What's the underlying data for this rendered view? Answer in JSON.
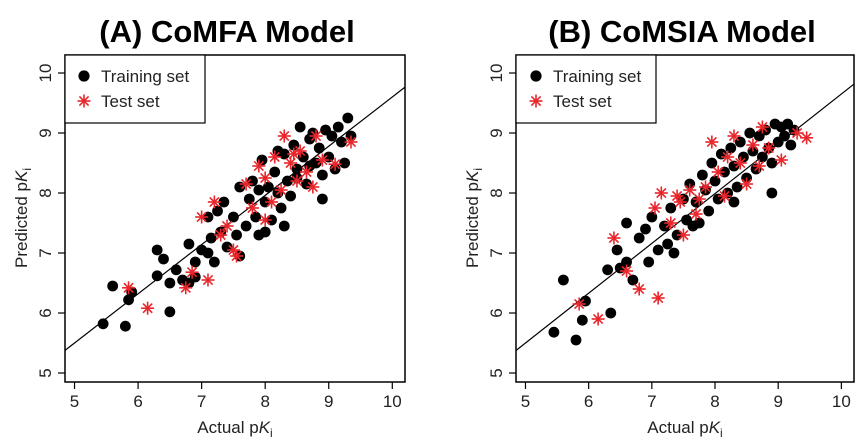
{
  "figure": {
    "panels": [
      {
        "title": "(A) CoMFA Model"
      },
      {
        "title": "(B) CoMSIA Model"
      }
    ]
  },
  "chart_data": [
    {
      "type": "scatter",
      "title": "(A) CoMFA Model",
      "xlabel": "Actual pKi",
      "ylabel": "Predicted pKi",
      "xlim": [
        4.85,
        10.2
      ],
      "ylim": [
        4.85,
        10.3
      ],
      "xticks": [
        5,
        6,
        7,
        8,
        9,
        10
      ],
      "yticks": [
        5,
        6,
        7,
        8,
        9,
        10
      ],
      "legend": {
        "position": "top-left",
        "entries": [
          "Training set",
          "Test set"
        ]
      },
      "reference_line": {
        "slope": 0.82,
        "intercept": 1.4
      },
      "colors": {
        "training": "#000000",
        "test": "#e8262b",
        "line": "#000000"
      },
      "series": [
        {
          "name": "Training set",
          "marker": "filled-circle",
          "points": [
            [
              5.45,
              5.82
            ],
            [
              5.6,
              6.45
            ],
            [
              5.8,
              5.78
            ],
            [
              5.85,
              6.22
            ],
            [
              5.9,
              6.35
            ],
            [
              6.3,
              6.62
            ],
            [
              6.3,
              7.05
            ],
            [
              6.5,
              6.02
            ],
            [
              6.5,
              6.5
            ],
            [
              6.6,
              6.72
            ],
            [
              6.4,
              6.9
            ],
            [
              6.7,
              6.55
            ],
            [
              6.8,
              7.15
            ],
            [
              6.9,
              6.85
            ],
            [
              6.9,
              6.6
            ],
            [
              7.0,
              7.05
            ],
            [
              7.1,
              7.6
            ],
            [
              7.15,
              7.25
            ],
            [
              7.2,
              6.85
            ],
            [
              7.25,
              7.7
            ],
            [
              7.3,
              7.35
            ],
            [
              7.35,
              7.85
            ],
            [
              7.4,
              7.1
            ],
            [
              7.5,
              7.6
            ],
            [
              7.55,
              7.3
            ],
            [
              7.6,
              8.1
            ],
            [
              7.7,
              7.45
            ],
            [
              7.75,
              7.9
            ],
            [
              7.8,
              8.2
            ],
            [
              7.85,
              7.6
            ],
            [
              7.9,
              7.3
            ],
            [
              7.95,
              8.55
            ],
            [
              8.0,
              7.85
            ],
            [
              8.05,
              8.1
            ],
            [
              8.1,
              7.55
            ],
            [
              8.15,
              8.35
            ],
            [
              8.2,
              8.0
            ],
            [
              8.25,
              7.75
            ],
            [
              8.3,
              8.65
            ],
            [
              8.35,
              8.2
            ],
            [
              8.4,
              7.95
            ],
            [
              8.45,
              8.8
            ],
            [
              8.5,
              8.4
            ],
            [
              8.55,
              9.1
            ],
            [
              8.6,
              8.6
            ],
            [
              8.65,
              8.15
            ],
            [
              8.7,
              8.9
            ],
            [
              8.75,
              9.0
            ],
            [
              8.8,
              8.5
            ],
            [
              8.85,
              8.75
            ],
            [
              8.9,
              8.3
            ],
            [
              8.95,
              9.05
            ],
            [
              9.0,
              8.6
            ],
            [
              9.05,
              8.95
            ],
            [
              9.1,
              8.4
            ],
            [
              9.15,
              9.1
            ],
            [
              9.2,
              8.85
            ],
            [
              9.25,
              8.5
            ],
            [
              9.3,
              9.25
            ],
            [
              9.35,
              8.95
            ],
            [
              8.3,
              7.45
            ],
            [
              8.0,
              7.35
            ],
            [
              8.9,
              7.9
            ],
            [
              7.6,
              6.95
            ],
            [
              6.8,
              6.5
            ],
            [
              7.1,
              7.0
            ],
            [
              8.5,
              8.25
            ],
            [
              8.7,
              8.45
            ],
            [
              8.2,
              8.7
            ],
            [
              7.9,
              8.05
            ]
          ]
        },
        {
          "name": "Test set",
          "marker": "asterisk",
          "points": [
            [
              5.85,
              6.42
            ],
            [
              6.15,
              6.08
            ],
            [
              6.75,
              6.42
            ],
            [
              6.85,
              6.68
            ],
            [
              7.1,
              6.55
            ],
            [
              7.0,
              7.6
            ],
            [
              7.2,
              7.85
            ],
            [
              7.4,
              7.45
            ],
            [
              7.5,
              7.05
            ],
            [
              7.55,
              6.95
            ],
            [
              7.7,
              8.15
            ],
            [
              7.8,
              7.75
            ],
            [
              7.9,
              8.45
            ],
            [
              8.0,
              8.25
            ],
            [
              8.1,
              7.85
            ],
            [
              8.15,
              8.6
            ],
            [
              8.25,
              8.05
            ],
            [
              8.3,
              8.95
            ],
            [
              8.4,
              8.5
            ],
            [
              8.5,
              8.2
            ],
            [
              8.55,
              8.7
            ],
            [
              8.65,
              8.35
            ],
            [
              8.8,
              8.95
            ],
            [
              8.9,
              8.55
            ],
            [
              9.1,
              8.48
            ],
            [
              9.35,
              8.85
            ],
            [
              8.0,
              7.55
            ],
            [
              7.3,
              7.3
            ],
            [
              8.45,
              8.65
            ],
            [
              8.75,
              8.1
            ]
          ]
        }
      ]
    },
    {
      "type": "scatter",
      "title": "(B) CoMSIA Model",
      "xlabel": "Actual pKi",
      "ylabel": "Predicted pKi",
      "xlim": [
        4.85,
        10.2
      ],
      "ylim": [
        4.85,
        10.3
      ],
      "xticks": [
        5,
        6,
        7,
        8,
        9,
        10
      ],
      "yticks": [
        5,
        6,
        7,
        8,
        9,
        10
      ],
      "legend": {
        "position": "top-left",
        "entries": [
          "Training set",
          "Test set"
        ]
      },
      "reference_line": {
        "slope": 0.83,
        "intercept": 1.35
      },
      "colors": {
        "training": "#000000",
        "test": "#e8262b",
        "line": "#000000"
      },
      "series": [
        {
          "name": "Training set",
          "marker": "filled-circle",
          "points": [
            [
              5.45,
              5.68
            ],
            [
              5.6,
              6.55
            ],
            [
              5.8,
              5.55
            ],
            [
              5.9,
              5.88
            ],
            [
              5.95,
              6.2
            ],
            [
              6.3,
              6.72
            ],
            [
              6.35,
              6.0
            ],
            [
              6.5,
              6.75
            ],
            [
              6.6,
              7.5
            ],
            [
              6.7,
              6.55
            ],
            [
              6.8,
              7.25
            ],
            [
              6.9,
              7.4
            ],
            [
              6.95,
              6.85
            ],
            [
              7.0,
              7.6
            ],
            [
              7.1,
              7.05
            ],
            [
              7.2,
              7.45
            ],
            [
              7.25,
              7.15
            ],
            [
              7.3,
              7.75
            ],
            [
              7.4,
              7.3
            ],
            [
              7.5,
              7.9
            ],
            [
              7.55,
              7.55
            ],
            [
              7.6,
              8.15
            ],
            [
              7.7,
              7.85
            ],
            [
              7.75,
              7.5
            ],
            [
              7.8,
              8.3
            ],
            [
              7.85,
              8.05
            ],
            [
              7.9,
              7.7
            ],
            [
              7.95,
              8.5
            ],
            [
              8.0,
              8.2
            ],
            [
              8.05,
              7.9
            ],
            [
              8.1,
              8.65
            ],
            [
              8.15,
              8.35
            ],
            [
              8.2,
              8.0
            ],
            [
              8.25,
              8.75
            ],
            [
              8.3,
              8.45
            ],
            [
              8.35,
              8.1
            ],
            [
              8.4,
              8.85
            ],
            [
              8.45,
              8.6
            ],
            [
              8.5,
              8.25
            ],
            [
              8.55,
              9.0
            ],
            [
              8.6,
              8.7
            ],
            [
              8.65,
              8.4
            ],
            [
              8.7,
              8.95
            ],
            [
              8.75,
              8.6
            ],
            [
              8.8,
              9.05
            ],
            [
              8.85,
              8.75
            ],
            [
              8.9,
              8.5
            ],
            [
              8.95,
              9.15
            ],
            [
              9.0,
              8.85
            ],
            [
              9.05,
              9.1
            ],
            [
              9.1,
              8.95
            ],
            [
              9.15,
              9.15
            ],
            [
              9.2,
              8.8
            ],
            [
              6.45,
              7.05
            ],
            [
              6.6,
              6.85
            ],
            [
              7.35,
              7.0
            ],
            [
              8.9,
              8.0
            ],
            [
              7.65,
              7.45
            ],
            [
              8.3,
              7.85
            ],
            [
              9.25,
              9.05
            ]
          ]
        },
        {
          "name": "Test set",
          "marker": "asterisk",
          "points": [
            [
              5.85,
              6.15
            ],
            [
              6.15,
              5.9
            ],
            [
              6.4,
              7.25
            ],
            [
              6.6,
              6.7
            ],
            [
              6.8,
              6.4
            ],
            [
              7.1,
              6.25
            ],
            [
              7.05,
              7.75
            ],
            [
              7.15,
              8.0
            ],
            [
              7.3,
              7.5
            ],
            [
              7.45,
              7.85
            ],
            [
              7.5,
              7.3
            ],
            [
              7.6,
              8.05
            ],
            [
              7.7,
              7.65
            ],
            [
              7.85,
              8.1
            ],
            [
              7.95,
              8.85
            ],
            [
              8.05,
              8.35
            ],
            [
              8.15,
              7.95
            ],
            [
              8.3,
              8.95
            ],
            [
              8.4,
              8.5
            ],
            [
              8.5,
              8.15
            ],
            [
              8.6,
              8.8
            ],
            [
              8.7,
              8.45
            ],
            [
              8.85,
              8.75
            ],
            [
              9.05,
              8.55
            ],
            [
              9.3,
              9.0
            ],
            [
              9.45,
              8.92
            ],
            [
              7.4,
              7.95
            ],
            [
              8.2,
              8.6
            ],
            [
              8.75,
              9.1
            ],
            [
              7.75,
              7.9
            ]
          ]
        }
      ]
    }
  ]
}
